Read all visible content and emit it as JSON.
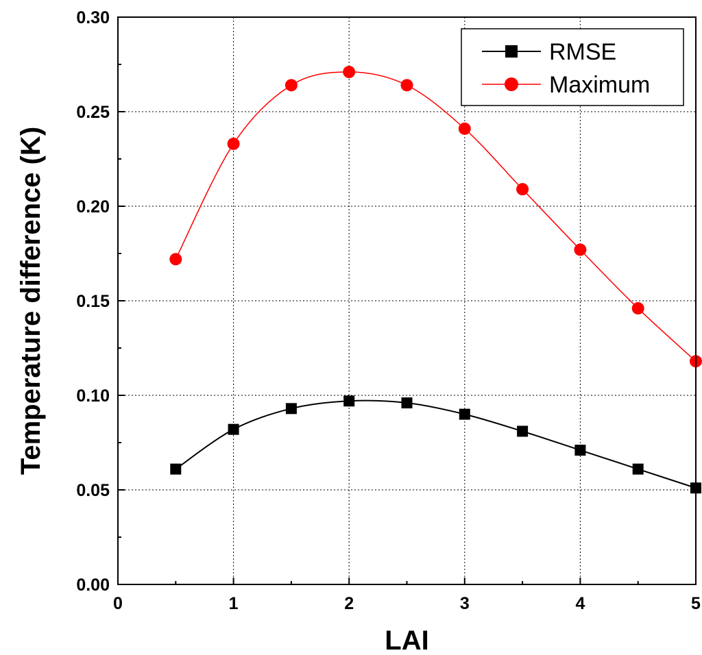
{
  "chart_data": {
    "type": "line",
    "title": "",
    "xlabel": "LAI",
    "ylabel": "Temperature difference (K)",
    "xlim": [
      0,
      5
    ],
    "ylim": [
      0,
      0.3
    ],
    "xticks": [
      "0",
      "1",
      "2",
      "3",
      "4",
      "5"
    ],
    "yticks": [
      "0.00",
      "0.05",
      "0.10",
      "0.15",
      "0.20",
      "0.25",
      "0.30"
    ],
    "grid": true,
    "legend_position": "top-right",
    "x": [
      0.5,
      1,
      1.5,
      2,
      2.5,
      3,
      3.5,
      4,
      4.5,
      5
    ],
    "series": [
      {
        "name": "RMSE",
        "color": "#000000",
        "marker": "square",
        "values": [
          0.061,
          0.082,
          0.093,
          0.097,
          0.096,
          0.09,
          0.081,
          0.071,
          0.061,
          0.051
        ]
      },
      {
        "name": "Maximum",
        "color": "#ff0000",
        "marker": "circle",
        "values": [
          0.172,
          0.233,
          0.264,
          0.271,
          0.264,
          0.241,
          0.209,
          0.177,
          0.146,
          0.118
        ]
      }
    ]
  }
}
